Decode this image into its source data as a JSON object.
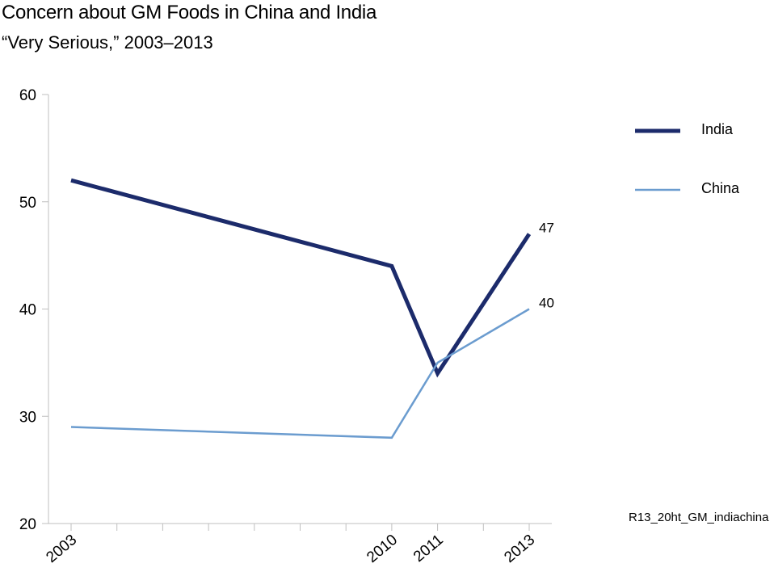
{
  "chart_data": {
    "type": "line",
    "title": "Concern about GM Foods in China and India",
    "subtitle": "“Very Serious,” 2003–2013",
    "x": [
      2003,
      2010,
      2011,
      2013
    ],
    "xlim": [
      2003,
      2013
    ],
    "ylim": [
      20,
      60
    ],
    "yticks": [
      20,
      30,
      40,
      50,
      60
    ],
    "series": [
      {
        "name": "India",
        "values": [
          52,
          44,
          34,
          47
        ],
        "color": "#1c2b6b",
        "end_label": "47"
      },
      {
        "name": "China",
        "values": [
          29,
          28,
          35,
          40
        ],
        "color": "#6b9ccf",
        "end_label": "40"
      }
    ],
    "legend_placement": "top-right",
    "grid": false,
    "source": "R13_20ht_GM_indiachina"
  }
}
